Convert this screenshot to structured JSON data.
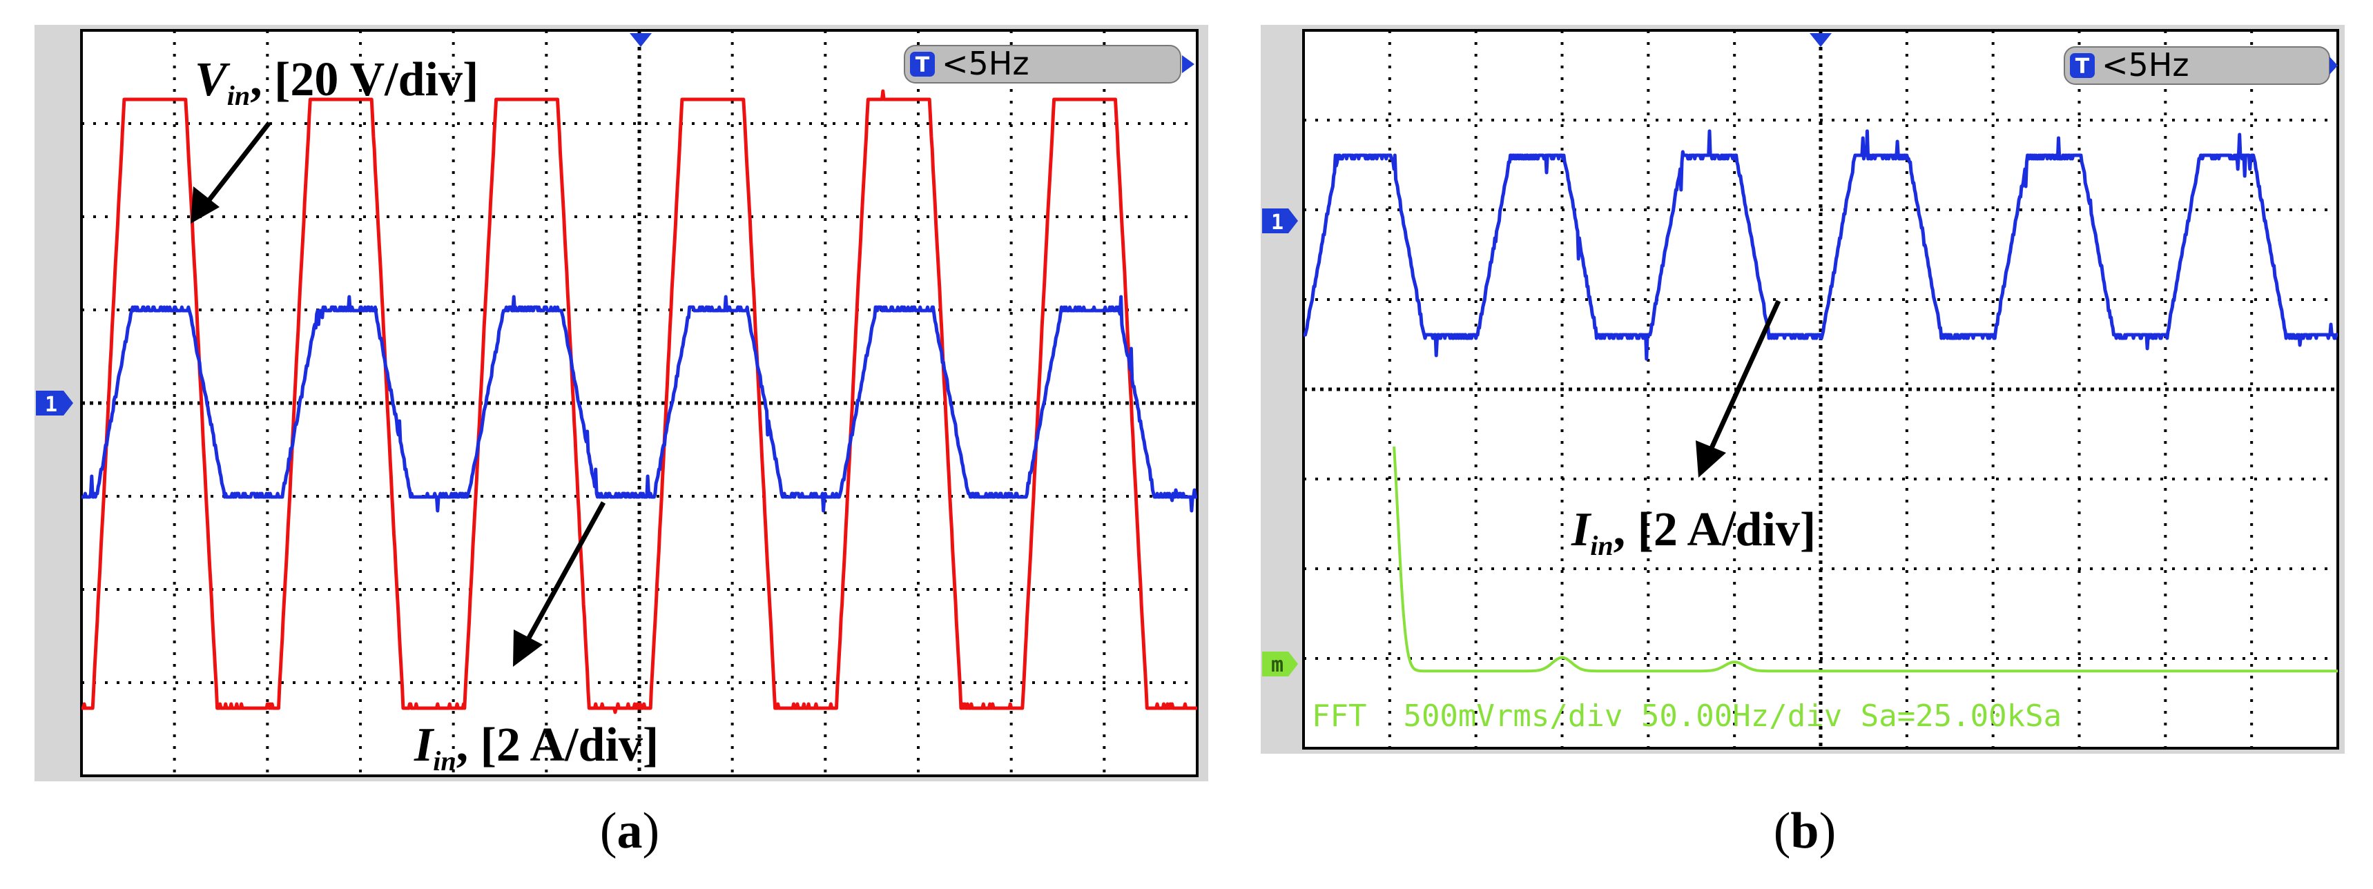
{
  "panels": [
    {
      "id": "a",
      "caption": "(a)",
      "trigger_label": "<5Hz",
      "trigger_badge": "T",
      "channel_marker": "1",
      "annotations": [
        {
          "id": "vin",
          "symbol": "V",
          "subscript": "in",
          "scale": ", [20 V/div]"
        },
        {
          "id": "iin",
          "symbol": "I",
          "subscript": "in",
          "scale": ", [2 A/div]"
        }
      ]
    },
    {
      "id": "b",
      "caption": "(b)",
      "trigger_label": "<5Hz",
      "trigger_badge": "T",
      "channel_marker": "1",
      "math_marker": "m",
      "fft_readout": "FFT  500mVrms/div 50.00Hz/div Sa=25.00kSa",
      "annotations": [
        {
          "id": "iin",
          "symbol": "I",
          "subscript": "in",
          "scale": ", [2 A/div]"
        }
      ]
    }
  ],
  "colors": {
    "voltage_trace": "#ee1111",
    "current_trace": "#1a2ee0",
    "fft_trace": "#88e03a",
    "grid": "#000000",
    "bezel": "#d6d6d6",
    "marker": "#1e3cd8",
    "trigger_pill": "#bdbdbd"
  },
  "chart_data": [
    {
      "type": "line",
      "panel": "a",
      "grid": true,
      "x_divisions": 12,
      "y_divisions": 8,
      "fundamental_cycles_on_screen": 6,
      "series": [
        {
          "name": "Vin",
          "unit_per_div": "20 V/div",
          "waveform": "quasi-square (trapezoidal)",
          "peak_div": 3.4,
          "trough_div": -3.4,
          "offset_div": 0
        },
        {
          "name": "Iin",
          "unit_per_div": "2 A/div",
          "waveform": "trapezoidal",
          "peak_div": 1.0,
          "trough_div": -1.0,
          "offset_div": 0
        }
      ]
    },
    {
      "type": "line",
      "panel": "b",
      "grid": true,
      "x_divisions": 12,
      "y_divisions": 8,
      "fundamental_cycles_on_screen": 6,
      "series": [
        {
          "name": "Iin",
          "unit_per_div": "2 A/div",
          "waveform": "trapezoidal",
          "peak_div": 1.0,
          "trough_div": -1.0
        },
        {
          "name": "FFT",
          "unit_per_div": "500mVrms/div",
          "x_unit_per_div": "50.00Hz/div",
          "peaks": [
            {
              "freq_div": 1.0,
              "amplitude_div": 2.9
            },
            {
              "freq_div": 3.0,
              "amplitude_div": 0.15
            },
            {
              "freq_div": 5.0,
              "amplitude_div": 0.1
            }
          ]
        }
      ]
    }
  ]
}
